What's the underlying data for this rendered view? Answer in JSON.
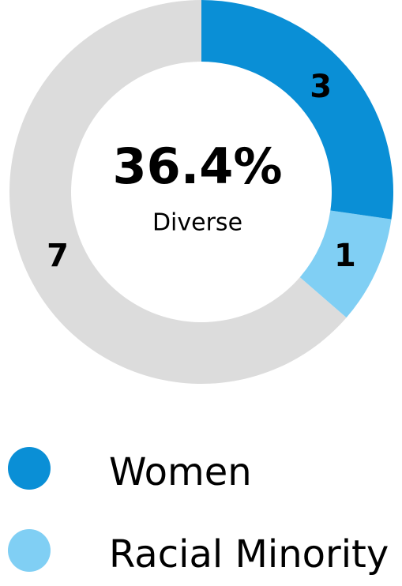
{
  "chart_data": {
    "type": "donut",
    "center_label": "36.4%",
    "center_sublabel": "Diverse",
    "categories": [
      "Women",
      "Racial Minority",
      null
    ],
    "values": [
      3,
      1,
      7
    ],
    "colors": [
      "#0a8fd6",
      "#80cff4",
      "#dcdcdc"
    ]
  }
}
